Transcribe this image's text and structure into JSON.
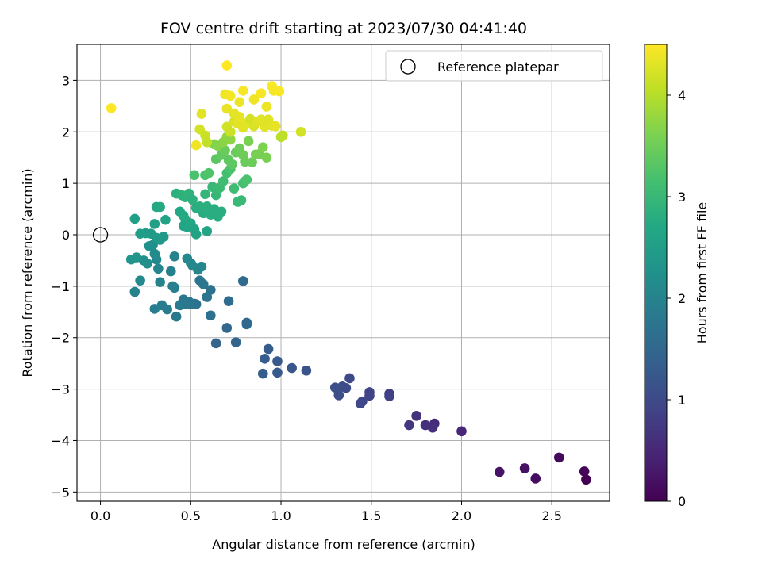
{
  "chart_data": {
    "type": "scatter",
    "title": "FOV centre drift starting at 2023/07/30 04:41:40",
    "xlabel": "Angular distance from reference (arcmin)",
    "ylabel": "Rotation from reference (arcmin)",
    "xlim": [
      -0.13,
      2.82
    ],
    "ylim": [
      -5.18,
      3.7
    ],
    "xticks": [
      0.0,
      0.5,
      1.0,
      1.5,
      2.0,
      2.5
    ],
    "xtick_labels": [
      "0.0",
      "0.5",
      "1.0",
      "1.5",
      "2.0",
      "2.5"
    ],
    "yticks": [
      -5,
      -4,
      -3,
      -2,
      -1,
      0,
      1,
      2,
      3
    ],
    "ytick_labels": [
      "−5",
      "−4",
      "−3",
      "−2",
      "−1",
      "0",
      "1",
      "2",
      "3"
    ],
    "grid": true,
    "legend": {
      "placement": "top-right",
      "entries": [
        "Reference platepar"
      ]
    },
    "colorbar": {
      "label": "Hours from first FF file",
      "colormap": "viridis",
      "range": [
        0,
        4.5
      ],
      "ticks": [
        0,
        1,
        2,
        3,
        4
      ],
      "tick_labels": [
        "0",
        "1",
        "2",
        "3",
        "4"
      ]
    },
    "reference_point": {
      "x": 0.0,
      "y": 0.0
    },
    "colors": {
      "reference_marker": "#000000",
      "grid": "#b0b0b0"
    },
    "series": [
      {
        "points": [
          [
            2.69,
            -4.76,
            0.0
          ],
          [
            2.68,
            -4.6,
            0.05
          ],
          [
            2.54,
            -4.33,
            0.1
          ],
          [
            2.41,
            -4.74,
            0.15
          ],
          [
            2.35,
            -4.54,
            0.2
          ],
          [
            2.21,
            -4.61,
            0.25
          ],
          [
            2.0,
            -3.82,
            0.5
          ],
          [
            1.85,
            -3.67,
            0.55
          ],
          [
            1.84,
            -3.75,
            0.6
          ],
          [
            1.8,
            -3.7,
            0.62
          ],
          [
            1.75,
            -3.52,
            0.65
          ],
          [
            1.71,
            -3.7,
            0.7
          ],
          [
            1.6,
            -3.09,
            0.85
          ],
          [
            1.6,
            -3.14,
            0.87
          ],
          [
            1.49,
            -3.06,
            0.9
          ],
          [
            1.49,
            -3.13,
            0.92
          ],
          [
            1.45,
            -3.24,
            0.95
          ],
          [
            1.44,
            -3.28,
            0.97
          ],
          [
            1.38,
            -2.79,
            1.0
          ],
          [
            1.36,
            -2.98,
            1.02
          ],
          [
            1.34,
            -2.95,
            1.04
          ],
          [
            1.32,
            -3.12,
            1.06
          ],
          [
            1.3,
            -2.97,
            1.08
          ],
          [
            1.14,
            -2.64,
            1.15
          ],
          [
            1.06,
            -2.59,
            1.2
          ],
          [
            0.98,
            -2.46,
            1.25
          ],
          [
            0.98,
            -2.68,
            1.27
          ],
          [
            0.93,
            -2.22,
            1.3
          ],
          [
            0.91,
            -2.41,
            1.32
          ],
          [
            0.9,
            -2.7,
            1.34
          ],
          [
            0.81,
            -1.71,
            1.5
          ],
          [
            0.81,
            -1.74,
            1.52
          ],
          [
            0.79,
            -0.9,
            1.55
          ],
          [
            0.75,
            -2.09,
            1.45
          ],
          [
            0.71,
            -1.29,
            1.6
          ],
          [
            0.7,
            -1.81,
            1.5
          ],
          [
            0.64,
            -2.11,
            1.45
          ],
          [
            0.61,
            -1.57,
            1.65
          ],
          [
            0.61,
            -1.07,
            1.7
          ],
          [
            0.59,
            -1.21,
            1.72
          ],
          [
            0.57,
            -0.96,
            1.75
          ],
          [
            0.55,
            -0.89,
            1.77
          ],
          [
            0.53,
            -1.35,
            1.7
          ],
          [
            0.52,
            -1.34,
            1.72
          ],
          [
            0.5,
            -1.35,
            1.74
          ],
          [
            0.49,
            -1.3,
            1.76
          ],
          [
            0.47,
            -1.35,
            1.78
          ],
          [
            0.46,
            -1.26,
            1.8
          ],
          [
            0.45,
            -1.34,
            1.82
          ],
          [
            0.44,
            -1.37,
            1.84
          ],
          [
            0.42,
            -1.59,
            1.8
          ],
          [
            0.41,
            -0.42,
            2.0
          ],
          [
            0.41,
            -1.03,
            1.9
          ],
          [
            0.4,
            -1.0,
            1.92
          ],
          [
            0.39,
            -0.71,
            1.95
          ],
          [
            0.37,
            -1.45,
            1.85
          ],
          [
            0.34,
            -1.37,
            1.88
          ],
          [
            0.33,
            -0.92,
            2.0
          ],
          [
            0.32,
            -0.66,
            2.05
          ],
          [
            0.31,
            -0.48,
            2.1
          ],
          [
            0.3,
            -1.44,
            1.9
          ],
          [
            0.3,
            -0.37,
            2.15
          ],
          [
            0.29,
            -0.2,
            2.2
          ],
          [
            0.27,
            -0.22,
            2.25
          ],
          [
            0.26,
            -0.56,
            2.2
          ],
          [
            0.24,
            -0.5,
            2.22
          ],
          [
            0.22,
            -0.89,
            2.1
          ],
          [
            0.2,
            -0.44,
            2.3
          ],
          [
            0.19,
            -1.11,
            2.0
          ],
          [
            0.17,
            -0.48,
            2.3
          ],
          [
            0.48,
            -0.46,
            2.1
          ],
          [
            0.5,
            -0.55,
            2.12
          ],
          [
            0.54,
            -0.68,
            2.05
          ],
          [
            0.51,
            -0.6,
            2.08
          ],
          [
            0.56,
            -0.62,
            2.06
          ],
          [
            0.35,
            -0.04,
            2.4
          ],
          [
            0.33,
            -0.1,
            2.38
          ],
          [
            0.31,
            -0.06,
            2.42
          ],
          [
            0.28,
            0.02,
            2.45
          ],
          [
            0.25,
            0.03,
            2.47
          ],
          [
            0.22,
            0.02,
            2.5
          ],
          [
            0.19,
            0.31,
            2.55
          ],
          [
            0.3,
            0.21,
            2.55
          ],
          [
            0.36,
            0.29,
            2.6
          ],
          [
            0.31,
            0.54,
            2.7
          ],
          [
            0.33,
            0.54,
            2.72
          ],
          [
            0.44,
            0.45,
            2.7
          ],
          [
            0.46,
            0.37,
            2.72
          ],
          [
            0.47,
            0.3,
            2.73
          ],
          [
            0.46,
            0.17,
            2.65
          ],
          [
            0.48,
            0.15,
            2.67
          ],
          [
            0.5,
            0.22,
            2.68
          ],
          [
            0.52,
            0.11,
            2.62
          ],
          [
            0.53,
            0.01,
            2.6
          ],
          [
            0.59,
            0.07,
            2.62
          ],
          [
            0.42,
            0.8,
            2.85
          ],
          [
            0.45,
            0.77,
            2.87
          ],
          [
            0.47,
            0.73,
            2.88
          ],
          [
            0.49,
            0.8,
            2.9
          ],
          [
            0.51,
            0.68,
            2.85
          ],
          [
            0.53,
            0.52,
            2.8
          ],
          [
            0.55,
            0.55,
            2.82
          ],
          [
            0.57,
            0.42,
            2.78
          ],
          [
            0.59,
            0.55,
            2.83
          ],
          [
            0.61,
            0.39,
            2.8
          ],
          [
            0.63,
            0.5,
            2.82
          ],
          [
            0.65,
            0.35,
            2.78
          ],
          [
            0.67,
            0.45,
            2.8
          ],
          [
            0.58,
            0.79,
            2.95
          ],
          [
            0.62,
            0.93,
            3.0
          ],
          [
            0.64,
            0.77,
            2.98
          ],
          [
            0.66,
            0.91,
            3.05
          ],
          [
            0.68,
            1.04,
            3.1
          ],
          [
            0.7,
            1.2,
            3.15
          ],
          [
            0.72,
            1.28,
            3.2
          ],
          [
            0.74,
            0.9,
            3.1
          ],
          [
            0.76,
            0.64,
            3.0
          ],
          [
            0.78,
            0.67,
            3.02
          ],
          [
            0.79,
            1.0,
            3.15
          ],
          [
            0.8,
            1.04,
            3.18
          ],
          [
            0.81,
            1.07,
            3.2
          ],
          [
            0.52,
            1.16,
            3.2
          ],
          [
            0.58,
            1.16,
            3.22
          ],
          [
            0.6,
            1.2,
            3.24
          ],
          [
            0.64,
            1.47,
            3.35
          ],
          [
            0.67,
            1.55,
            3.4
          ],
          [
            0.69,
            1.64,
            3.45
          ],
          [
            0.71,
            1.45,
            3.38
          ],
          [
            0.73,
            1.37,
            3.36
          ],
          [
            0.75,
            1.6,
            3.45
          ],
          [
            0.77,
            1.68,
            3.5
          ],
          [
            0.79,
            1.55,
            3.5
          ],
          [
            0.8,
            1.42,
            3.45
          ],
          [
            0.82,
            1.82,
            3.6
          ],
          [
            0.84,
            1.41,
            3.48
          ],
          [
            0.86,
            1.56,
            3.55
          ],
          [
            0.88,
            1.57,
            3.58
          ],
          [
            0.9,
            1.7,
            3.62
          ],
          [
            0.92,
            1.5,
            3.58
          ],
          [
            0.63,
            1.76,
            3.65
          ],
          [
            0.65,
            1.73,
            3.66
          ],
          [
            0.68,
            1.8,
            3.7
          ],
          [
            0.7,
            1.9,
            3.75
          ],
          [
            0.72,
            1.85,
            3.74
          ],
          [
            0.55,
            2.05,
            4.2
          ],
          [
            0.56,
            2.35,
            4.3
          ],
          [
            0.58,
            1.93,
            4.15
          ],
          [
            0.59,
            1.8,
            4.1
          ],
          [
            0.53,
            1.74,
            4.4
          ],
          [
            0.7,
            2.1,
            4.2
          ],
          [
            0.72,
            2.0,
            4.15
          ],
          [
            0.74,
            2.2,
            4.25
          ],
          [
            0.76,
            2.16,
            4.3
          ],
          [
            0.77,
            2.29,
            4.35
          ],
          [
            0.79,
            2.08,
            4.3
          ],
          [
            0.81,
            2.17,
            4.32
          ],
          [
            0.83,
            2.25,
            4.2
          ],
          [
            0.85,
            2.11,
            4.25
          ],
          [
            0.87,
            2.2,
            4.28
          ],
          [
            0.89,
            2.24,
            4.3
          ],
          [
            0.91,
            2.1,
            4.3
          ],
          [
            0.93,
            2.24,
            4.28
          ],
          [
            0.95,
            2.12,
            4.3
          ],
          [
            0.97,
            2.11,
            4.35
          ],
          [
            1.0,
            1.9,
            4.0
          ],
          [
            1.01,
            1.93,
            4.05
          ],
          [
            1.11,
            2.0,
            4.2
          ],
          [
            0.69,
            2.73,
            4.4
          ],
          [
            0.72,
            2.7,
            4.42
          ],
          [
            0.7,
            2.45,
            4.35
          ],
          [
            0.74,
            2.36,
            4.32
          ],
          [
            0.77,
            2.58,
            4.38
          ],
          [
            0.79,
            2.8,
            4.45
          ],
          [
            0.85,
            2.63,
            4.4
          ],
          [
            0.89,
            2.75,
            4.45
          ],
          [
            0.92,
            2.49,
            4.38
          ],
          [
            0.95,
            2.89,
            4.48
          ],
          [
            0.96,
            2.8,
            4.46
          ],
          [
            0.99,
            2.79,
            4.47
          ],
          [
            0.7,
            3.29,
            4.5
          ],
          [
            0.06,
            2.46,
            4.5
          ]
        ]
      }
    ]
  }
}
